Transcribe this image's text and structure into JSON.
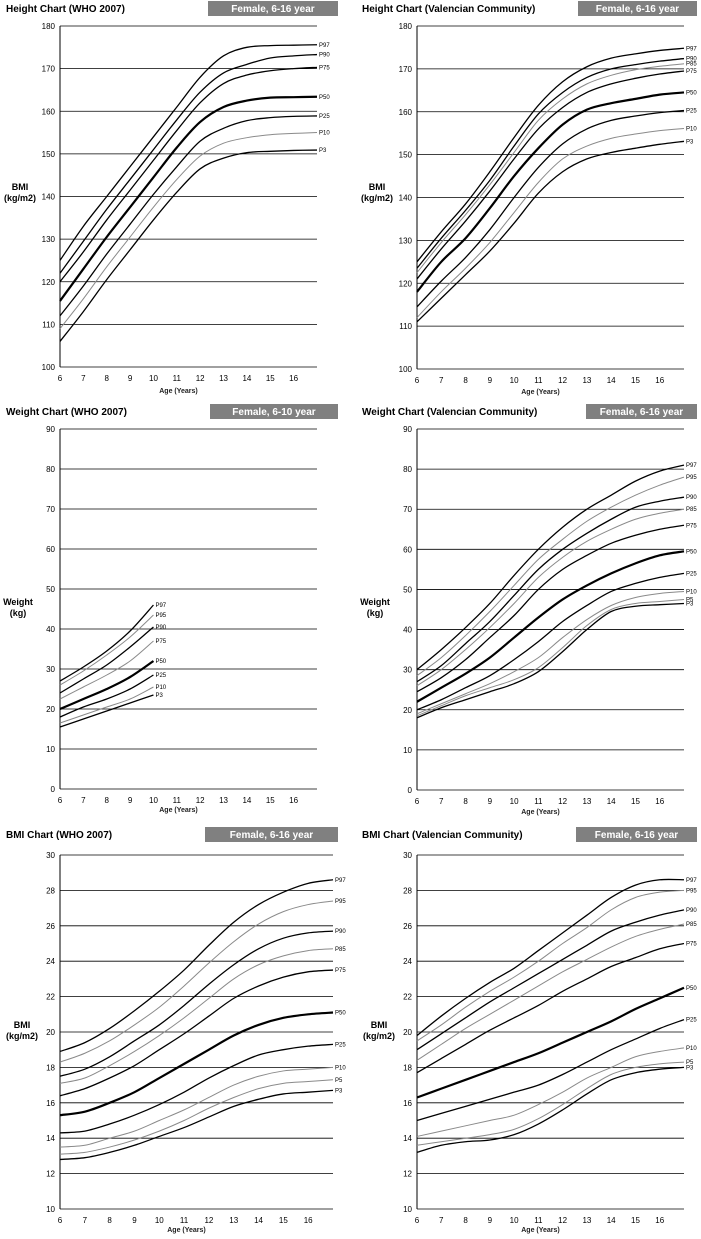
{
  "chart_data": [
    {
      "id": "height-who",
      "type": "line",
      "title": "Height Chart (WHO 2007)",
      "tag": "Female, 6-16 year",
      "xlabel": "Age (Years)",
      "ylabel": [
        "BMI",
        "(kg/m2)"
      ],
      "xlim": [
        6,
        17
      ],
      "ylim": [
        100,
        180
      ],
      "ystep": 10,
      "xticks": [
        6,
        7,
        8,
        9,
        10,
        11,
        12,
        13,
        14,
        15,
        16
      ],
      "x": [
        6,
        7,
        8,
        9,
        10,
        11,
        12,
        13,
        14,
        15,
        16,
        17
      ],
      "series": [
        {
          "name": "P97",
          "emph": 1,
          "values": [
            125,
            133,
            140,
            147,
            154,
            161,
            168,
            173,
            175,
            175.4,
            175.5,
            175.6
          ]
        },
        {
          "name": "P90",
          "emph": 1,
          "values": [
            122,
            129.5,
            137,
            144,
            151,
            158,
            164.5,
            169,
            171,
            172.5,
            173,
            173.3
          ]
        },
        {
          "name": "P75",
          "emph": 1,
          "values": [
            120,
            127,
            134.5,
            141.5,
            148.5,
            155.5,
            162,
            166.5,
            168.5,
            169.5,
            170,
            170.3
          ]
        },
        {
          "name": "P50",
          "emph": 2,
          "values": [
            115.5,
            123,
            130.5,
            137.5,
            144.5,
            151.5,
            157.5,
            161,
            162.5,
            163.2,
            163.3,
            163.4
          ]
        },
        {
          "name": "P25",
          "emph": 1,
          "values": [
            112,
            119,
            126.5,
            133.5,
            140.5,
            147,
            153,
            156,
            157.8,
            158.5,
            158.8,
            158.9
          ]
        },
        {
          "name": "P10",
          "emph": 0,
          "values": [
            109,
            116,
            123.5,
            130.5,
            137.5,
            144,
            149.5,
            152.5,
            153.8,
            154.5,
            154.8,
            155
          ]
        },
        {
          "name": "P3",
          "emph": 1,
          "values": [
            106,
            113,
            120.5,
            127.5,
            134.5,
            141,
            146.5,
            149,
            150.3,
            150.6,
            150.8,
            150.9
          ]
        }
      ]
    },
    {
      "id": "height-valencia",
      "type": "line",
      "title": "Height Chart (Valencian Community)",
      "tag": "Female, 6-16 year",
      "xlabel": "Age (Years)",
      "ylabel": [
        "BMI",
        "(kg/m2)"
      ],
      "xlim": [
        6,
        17
      ],
      "ylim": [
        100,
        180
      ],
      "ystep": 10,
      "xticks": [
        6,
        7,
        8,
        9,
        10,
        11,
        12,
        13,
        14,
        15,
        16
      ],
      "x": [
        6,
        7,
        8,
        9,
        10,
        11,
        12,
        13,
        14,
        15,
        16,
        17
      ],
      "series": [
        {
          "name": "P97",
          "emph": 1,
          "values": [
            125,
            132,
            138.5,
            146,
            154,
            161.5,
            167,
            170.5,
            172.5,
            173.5,
            174.3,
            174.8
          ]
        },
        {
          "name": "P90",
          "emph": 1,
          "values": [
            123.5,
            130.5,
            137,
            144,
            152,
            159.5,
            164.5,
            168,
            170,
            171,
            171.8,
            172.4
          ]
        },
        {
          "name": "P85",
          "emph": 0,
          "values": [
            122.5,
            129.5,
            136,
            143,
            150.5,
            158,
            163,
            166.5,
            168.5,
            169.8,
            170.6,
            171.2
          ]
        },
        {
          "name": "P75",
          "emph": 1,
          "values": [
            121,
            128,
            134.5,
            141.5,
            149,
            156,
            161,
            164.5,
            166.5,
            167.8,
            168.8,
            169.5
          ]
        },
        {
          "name": "P50",
          "emph": 2,
          "values": [
            118,
            125,
            130.5,
            137.5,
            145,
            151.5,
            157,
            160.5,
            162,
            163,
            164,
            164.5
          ]
        },
        {
          "name": "P25",
          "emph": 1,
          "values": [
            114.5,
            120.5,
            126,
            132.5,
            140,
            147,
            152.5,
            156,
            158,
            159,
            159.8,
            160.3
          ]
        },
        {
          "name": "P10",
          "emph": 0,
          "values": [
            112,
            118,
            123.5,
            129.5,
            136.5,
            143.5,
            149,
            152,
            153.8,
            154.8,
            155.6,
            156.1
          ]
        },
        {
          "name": "P3",
          "emph": 1,
          "values": [
            111,
            116.5,
            122,
            127.5,
            134,
            141,
            146,
            149,
            150.5,
            151.5,
            152.4,
            153.1
          ]
        }
      ]
    },
    {
      "id": "weight-who",
      "type": "line",
      "title": "Weight Chart (WHO 2007)",
      "tag": "Female, 6-10 year",
      "xlabel": "Age (Years)",
      "ylabel": [
        "Weight",
        "(kg)"
      ],
      "xlim": [
        6,
        17
      ],
      "ylim": [
        0,
        90
      ],
      "ystep": 10,
      "xticks": [
        6,
        7,
        8,
        9,
        10,
        11,
        12,
        13,
        14,
        15,
        16
      ],
      "x": [
        6,
        7,
        8,
        9,
        10
      ],
      "series": [
        {
          "name": "P97",
          "emph": 1,
          "values": [
            27,
            30.5,
            34.5,
            39.5,
            46
          ]
        },
        {
          "name": "P95",
          "emph": 0,
          "values": [
            26,
            29.5,
            33.5,
            38,
            43.5
          ]
        },
        {
          "name": "P90",
          "emph": 1,
          "values": [
            24,
            27.5,
            31,
            35.5,
            40.5
          ]
        },
        {
          "name": "P75",
          "emph": 0,
          "values": [
            22.5,
            25.5,
            28.5,
            32,
            37
          ]
        },
        {
          "name": "P50",
          "emph": 2,
          "values": [
            20,
            22.5,
            25,
            28,
            32
          ]
        },
        {
          "name": "P25",
          "emph": 1,
          "values": [
            18,
            20.5,
            22.5,
            25,
            28.5
          ]
        },
        {
          "name": "P10",
          "emph": 0,
          "values": [
            16.5,
            18.5,
            20.5,
            22.5,
            25.5
          ]
        },
        {
          "name": "P3",
          "emph": 1,
          "values": [
            15.5,
            17.5,
            19.5,
            21.5,
            23.5
          ]
        }
      ]
    },
    {
      "id": "weight-valencia",
      "type": "line",
      "title": "Weight Chart (Valencian Community)",
      "tag": "Female, 6-16 year",
      "xlabel": "Age (Years)",
      "ylabel": [
        "Weight",
        "(kg)"
      ],
      "xlim": [
        6,
        17
      ],
      "ylim": [
        0,
        90
      ],
      "ystep": 10,
      "xticks": [
        6,
        7,
        8,
        9,
        10,
        11,
        12,
        13,
        14,
        15,
        16
      ],
      "x": [
        6,
        7,
        8,
        9,
        10,
        11,
        12,
        13,
        14,
        15,
        16,
        17
      ],
      "series": [
        {
          "name": "P97",
          "emph": 1,
          "values": [
            30,
            35,
            40.5,
            46.5,
            53.5,
            60,
            65.5,
            70,
            73.5,
            77,
            79.5,
            81
          ]
        },
        {
          "name": "P95",
          "emph": 0,
          "values": [
            28.5,
            33,
            38.5,
            44.5,
            51,
            57.5,
            62.5,
            67,
            70.5,
            73.5,
            76,
            78
          ]
        },
        {
          "name": "P90",
          "emph": 1,
          "values": [
            27,
            31,
            36.5,
            42,
            48.5,
            55,
            60,
            64,
            67.5,
            70.5,
            72,
            73
          ]
        },
        {
          "name": "P85",
          "emph": 0,
          "values": [
            26,
            30,
            35,
            40.5,
            46.5,
            53,
            58,
            62,
            65,
            67.5,
            69,
            70
          ]
        },
        {
          "name": "P75",
          "emph": 1,
          "values": [
            24.5,
            28,
            32.5,
            38,
            43.5,
            50,
            55,
            58.5,
            61.5,
            63.5,
            65,
            66
          ]
        },
        {
          "name": "P50",
          "emph": 2,
          "values": [
            22,
            25.5,
            29,
            33,
            38,
            43,
            47.5,
            51,
            54,
            56.5,
            58.5,
            59.5
          ]
        },
        {
          "name": "P25",
          "emph": 1,
          "values": [
            20,
            22.5,
            25.5,
            28.5,
            32.5,
            37,
            42,
            46,
            49.5,
            51.5,
            53,
            54
          ]
        },
        {
          "name": "P10",
          "emph": 0,
          "values": [
            19,
            21.5,
            24,
            26.5,
            29.5,
            33,
            38,
            42.5,
            46,
            48,
            49,
            49.5
          ]
        },
        {
          "name": "P5",
          "emph": 0,
          "values": [
            18.5,
            21,
            23.5,
            25.5,
            27.5,
            30.5,
            35.5,
            41,
            45,
            46.5,
            47,
            47.5
          ]
        },
        {
          "name": "P3",
          "emph": 1,
          "values": [
            18,
            20.5,
            22.5,
            24.5,
            26.5,
            29.5,
            34.5,
            40,
            44.5,
            45.8,
            46.2,
            46.5
          ]
        }
      ]
    },
    {
      "id": "bmi-who",
      "type": "line",
      "title": "BMI Chart (WHO 2007)",
      "tag": "Female, 6-16 year",
      "xlabel": "Age (Years)",
      "ylabel": [
        "BMI",
        "(kg/m2)"
      ],
      "xlim": [
        6,
        17
      ],
      "ylim": [
        10,
        30
      ],
      "ystep": 2,
      "xticks": [
        6,
        7,
        8,
        9,
        10,
        11,
        12,
        13,
        14,
        15,
        16
      ],
      "x": [
        6,
        7,
        8,
        9,
        10,
        11,
        12,
        13,
        14,
        15,
        16,
        17
      ],
      "series": [
        {
          "name": "P97",
          "emph": 1,
          "values": [
            18.9,
            19.4,
            20.2,
            21.2,
            22.3,
            23.5,
            24.9,
            26.2,
            27.2,
            27.9,
            28.4,
            28.6
          ]
        },
        {
          "name": "P95",
          "emph": 0,
          "values": [
            18.3,
            18.8,
            19.5,
            20.4,
            21.4,
            22.6,
            23.9,
            25.1,
            26.1,
            26.8,
            27.2,
            27.4
          ]
        },
        {
          "name": "P90",
          "emph": 1,
          "values": [
            17.5,
            17.9,
            18.6,
            19.5,
            20.4,
            21.5,
            22.7,
            23.8,
            24.7,
            25.3,
            25.6,
            25.7
          ]
        },
        {
          "name": "P85",
          "emph": 0,
          "values": [
            17.1,
            17.4,
            18.1,
            18.9,
            19.8,
            20.8,
            21.9,
            23,
            23.8,
            24.3,
            24.6,
            24.7
          ]
        },
        {
          "name": "P75",
          "emph": 1,
          "values": [
            16.4,
            16.8,
            17.4,
            18.1,
            19,
            19.9,
            20.9,
            21.9,
            22.6,
            23.1,
            23.4,
            23.5
          ]
        },
        {
          "name": "P50",
          "emph": 2,
          "values": [
            15.3,
            15.5,
            16,
            16.6,
            17.4,
            18.2,
            19,
            19.8,
            20.4,
            20.8,
            21,
            21.1
          ]
        },
        {
          "name": "P25",
          "emph": 1,
          "values": [
            14.3,
            14.4,
            14.8,
            15.3,
            15.9,
            16.6,
            17.4,
            18.1,
            18.7,
            19,
            19.2,
            19.3
          ]
        },
        {
          "name": "P10",
          "emph": 0,
          "values": [
            13.5,
            13.6,
            14,
            14.4,
            15,
            15.6,
            16.3,
            17,
            17.5,
            17.8,
            17.9,
            18
          ]
        },
        {
          "name": "P5",
          "emph": 0,
          "values": [
            13.1,
            13.2,
            13.5,
            13.9,
            14.4,
            15,
            15.7,
            16.3,
            16.8,
            17.1,
            17.2,
            17.3
          ]
        },
        {
          "name": "P3",
          "emph": 1,
          "values": [
            12.8,
            12.9,
            13.2,
            13.6,
            14.1,
            14.6,
            15.2,
            15.8,
            16.2,
            16.5,
            16.6,
            16.7
          ]
        }
      ]
    },
    {
      "id": "bmi-valencia",
      "type": "line",
      "title": "BMI Chart (Valencian Community)",
      "tag": "Female, 6-16 year",
      "xlabel": "Age (Years)",
      "ylabel": [
        "BMI",
        "(kg/m2)"
      ],
      "xlim": [
        6,
        17
      ],
      "ylim": [
        10,
        30
      ],
      "ystep": 2,
      "xticks": [
        6,
        7,
        8,
        9,
        10,
        11,
        12,
        13,
        14,
        15,
        16
      ],
      "x": [
        6,
        7,
        8,
        9,
        10,
        11,
        12,
        13,
        14,
        15,
        16,
        17
      ],
      "series": [
        {
          "name": "P97",
          "emph": 1,
          "values": [
            19.8,
            20.9,
            21.9,
            22.8,
            23.6,
            24.6,
            25.6,
            26.6,
            27.6,
            28.3,
            28.6,
            28.6
          ]
        },
        {
          "name": "P95",
          "emph": 0,
          "values": [
            19.5,
            20.4,
            21.4,
            22.3,
            23.1,
            24,
            25,
            25.9,
            26.9,
            27.6,
            27.9,
            28
          ]
        },
        {
          "name": "P90",
          "emph": 1,
          "values": [
            19,
            19.9,
            20.8,
            21.7,
            22.5,
            23.3,
            24.1,
            24.9,
            25.7,
            26.2,
            26.6,
            26.9
          ]
        },
        {
          "name": "P85",
          "emph": 0,
          "values": [
            18.4,
            19.3,
            20.2,
            21,
            21.8,
            22.6,
            23.4,
            24.1,
            24.8,
            25.4,
            25.8,
            26.1
          ]
        },
        {
          "name": "P75",
          "emph": 1,
          "values": [
            17.7,
            18.5,
            19.3,
            20.1,
            20.8,
            21.5,
            22.3,
            23,
            23.7,
            24.2,
            24.7,
            25
          ]
        },
        {
          "name": "P50",
          "emph": 2,
          "values": [
            16.3,
            16.8,
            17.3,
            17.8,
            18.3,
            18.8,
            19.4,
            20,
            20.6,
            21.3,
            21.9,
            22.5
          ]
        },
        {
          "name": "P25",
          "emph": 1,
          "values": [
            15,
            15.4,
            15.8,
            16.2,
            16.6,
            17,
            17.6,
            18.3,
            19,
            19.6,
            20.2,
            20.7
          ]
        },
        {
          "name": "P10",
          "emph": 0,
          "values": [
            14.1,
            14.4,
            14.7,
            15,
            15.3,
            15.9,
            16.6,
            17.4,
            18,
            18.6,
            18.9,
            19.1
          ]
        },
        {
          "name": "P5",
          "emph": 0,
          "values": [
            13.6,
            13.8,
            14,
            14.2,
            14.5,
            15.1,
            15.9,
            16.8,
            17.6,
            18,
            18.2,
            18.3
          ]
        },
        {
          "name": "P3",
          "emph": 1,
          "values": [
            13.2,
            13.6,
            13.8,
            13.9,
            14.2,
            14.8,
            15.6,
            16.5,
            17.3,
            17.7,
            17.9,
            18
          ]
        }
      ]
    }
  ]
}
